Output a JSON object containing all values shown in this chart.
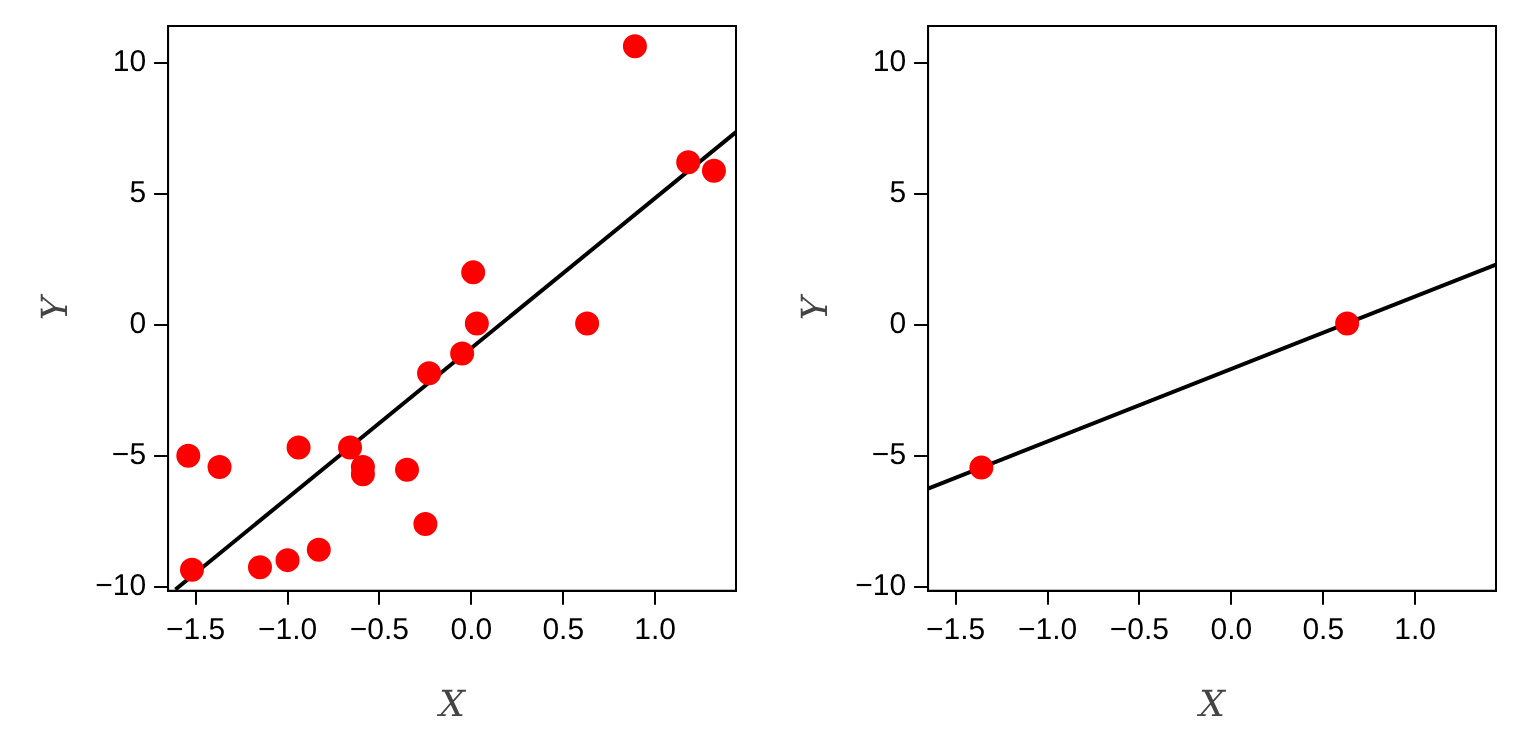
{
  "chart_data": [
    {
      "type": "scatter",
      "xlabel": "X",
      "ylabel": "Y",
      "xlim": [
        -1.65,
        1.44
      ],
      "ylim": [
        -10.15,
        11.4
      ],
      "xticks": [
        -1.5,
        {
          "value": -1,
          "label": "−1.0"
        },
        -0.5,
        {
          "value": 0,
          "label": "0.0"
        },
        0.5,
        {
          "value": 1,
          "label": "1.0"
        }
      ],
      "yticks": [
        -10,
        -5,
        0,
        5,
        10
      ],
      "grid": false,
      "series": [
        {
          "type": "scatter",
          "marker": "circle",
          "color": "#ff0000",
          "x": [
            -1.54,
            -1.52,
            -1.37,
            -1.15,
            -1.0,
            -0.94,
            -0.83,
            -0.66,
            -0.59,
            -0.59,
            -0.35,
            -0.25,
            -0.23,
            -0.05,
            0.01,
            0.03,
            0.63,
            0.89,
            1.18,
            1.32
          ],
          "values": [
            -5.0,
            -9.35,
            -5.43,
            -9.25,
            -8.98,
            -4.68,
            -8.58,
            -4.68,
            -5.43,
            -5.7,
            -5.53,
            -7.6,
            -1.85,
            -1.1,
            2.0,
            0.05,
            0.05,
            10.63,
            6.2,
            5.88
          ]
        },
        {
          "type": "line",
          "marker": "none",
          "color": "#000000",
          "x": [
            -1.61,
            1.44
          ],
          "values": [
            -10.1,
            7.35
          ]
        }
      ]
    },
    {
      "type": "scatter",
      "xlabel": "X",
      "ylabel": "Y",
      "xlim": [
        -1.65,
        1.44
      ],
      "ylim": [
        -10.15,
        11.4
      ],
      "xticks": [
        -1.5,
        {
          "value": -1,
          "label": "−1.0"
        },
        -0.5,
        {
          "value": 0,
          "label": "0.0"
        },
        0.5,
        {
          "value": 1,
          "label": "1.0"
        }
      ],
      "yticks": [
        -10,
        -5,
        0,
        5,
        10
      ],
      "grid": false,
      "series": [
        {
          "type": "scatter",
          "marker": "circle",
          "color": "#ff0000",
          "x": [
            -1.36,
            0.63
          ],
          "values": [
            -5.45,
            0.05
          ]
        },
        {
          "type": "line",
          "marker": "none",
          "color": "#000000",
          "x": [
            -1.65,
            1.44
          ],
          "values": [
            -6.25,
            2.3
          ]
        }
      ]
    }
  ]
}
